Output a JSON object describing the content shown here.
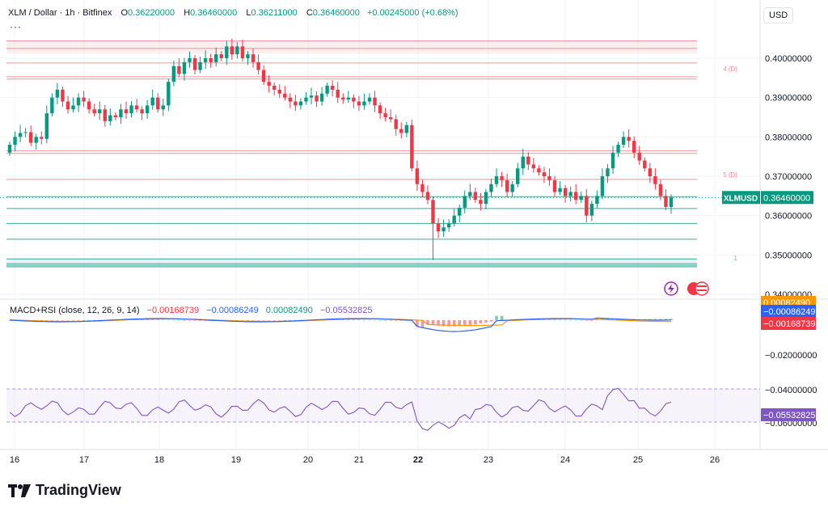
{
  "header": {
    "symbol": "XLM / Dollar · 1h · Bitfinex",
    "o_label": "O",
    "o_value": "0.36220000",
    "h_label": "H",
    "h_value": "0.36460000",
    "l_label": "L",
    "l_value": "0.36211000",
    "c_label": "C",
    "c_value": "0.36460000",
    "change": "+0.00245000 (+0.68%)",
    "more": "···"
  },
  "currency_button": "USD",
  "macd_header": {
    "label": "MACD+RSI (close, 12, 26, 9, 14)",
    "v1": "−0.00168739",
    "v2": "−0.00086249",
    "v3": "0.00082490",
    "v4": "−0.05532825"
  },
  "brand": "TradingView",
  "colors": {
    "up": "#089981",
    "down": "#f23645",
    "macd": "#2962ff",
    "signal": "#ff9800",
    "rsi": "#7e57c2"
  },
  "chart_data": {
    "type": "candlestick",
    "price_axis": {
      "min": 0.345,
      "max": 0.405,
      "ticks": [
        "0.40000000",
        "0.39000000",
        "0.38000000",
        "0.37000000",
        "0.36000000",
        "0.35000000",
        "0.34000000"
      ],
      "tick_values": [
        0.4,
        0.39,
        0.38,
        0.37,
        0.36,
        0.35,
        0.34
      ]
    },
    "x_ticks": [
      "16",
      "17",
      "18",
      "19",
      "20",
      "21",
      "22",
      "23",
      "24",
      "25",
      "26"
    ],
    "x_tick_positions": [
      0,
      1,
      2,
      3,
      4,
      5,
      6,
      7,
      8,
      9,
      10
    ],
    "last_price_label": {
      "symbol": "XLMUSD",
      "value": "0.36460000",
      "price": 0.3646
    },
    "level_labels": [
      {
        "text": "4 (D)",
        "price": 0.3963
      },
      {
        "text": "5 (D)",
        "price": 0.3694
      },
      {
        "text": "1",
        "price": 0.3482
      }
    ],
    "red_levels": [
      0.4044,
      0.4025,
      0.3988,
      0.3953,
      0.3947,
      0.3765,
      0.3758,
      0.3692
    ],
    "green_levels": [
      0.3648,
      0.3618,
      0.358,
      0.354,
      0.349,
      0.3478,
      0.3474,
      0.347
    ],
    "red_zone": [
      0.4012,
      0.4044
    ],
    "green_zone": [
      0.3468,
      0.3492
    ],
    "closes": [
      0.378,
      0.38,
      0.381,
      0.3812,
      0.3785,
      0.38,
      0.3795,
      0.386,
      0.39,
      0.392,
      0.389,
      0.387,
      0.388,
      0.39,
      0.389,
      0.387,
      0.386,
      0.387,
      0.384,
      0.3855,
      0.385,
      0.387,
      0.386,
      0.388,
      0.387,
      0.386,
      0.388,
      0.39,
      0.387,
      0.388,
      0.394,
      0.398,
      0.396,
      0.399,
      0.4,
      0.397,
      0.399,
      0.4,
      0.399,
      0.401,
      0.4,
      0.403,
      0.401,
      0.403,
      0.4,
      0.401,
      0.399,
      0.397,
      0.394,
      0.393,
      0.392,
      0.391,
      0.39,
      0.389,
      0.388,
      0.389,
      0.39,
      0.3905,
      0.389,
      0.391,
      0.393,
      0.392,
      0.39,
      0.3895,
      0.39,
      0.389,
      0.388,
      0.389,
      0.39,
      0.388,
      0.386,
      0.385,
      0.3845,
      0.382,
      0.381,
      0.383,
      0.372,
      0.368,
      0.366,
      0.364,
      0.358,
      0.356,
      0.357,
      0.358,
      0.36,
      0.362,
      0.365,
      0.366,
      0.364,
      0.363,
      0.366,
      0.368,
      0.37,
      0.369,
      0.366,
      0.368,
      0.372,
      0.375,
      0.373,
      0.372,
      0.371,
      0.37,
      0.369,
      0.366,
      0.367,
      0.365,
      0.366,
      0.364,
      0.365,
      0.36,
      0.363,
      0.365,
      0.37,
      0.372,
      0.376,
      0.378,
      0.38,
      0.379,
      0.376,
      0.374,
      0.372,
      0.37,
      0.368,
      0.365,
      0.3622,
      0.3646
    ],
    "macd_axis": {
      "ticks": [
        "−0.02000000",
        "−0.04000000",
        "−0.06000000"
      ]
    },
    "macd_labels": [
      {
        "text": "0.00082490",
        "kind": "signal"
      },
      {
        "text": "−0.00086249",
        "kind": "macd"
      },
      {
        "text": "−0.00168739",
        "kind": "hist"
      },
      {
        "text": "−0.05532825",
        "kind": "rsi"
      }
    ]
  }
}
